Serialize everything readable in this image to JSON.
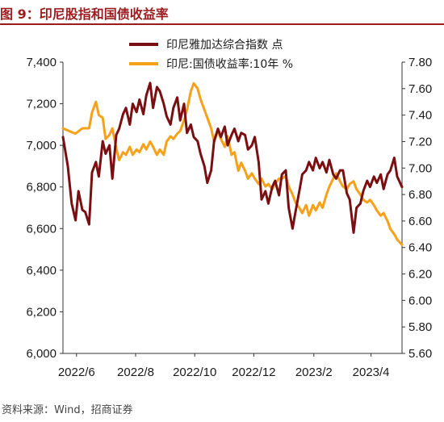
{
  "figure": {
    "title": "图 9：印尼股指和国债收益率",
    "source": "资料来源：Wind，招商证券"
  },
  "colors": {
    "title": "#9b1c1f",
    "jci_series": "#7a0f12",
    "yield_series": "#f7a11a",
    "axis": "#333333"
  },
  "chart_data": {
    "type": "line",
    "title": "",
    "xlabel": "",
    "x_range": [
      "2022-05-18",
      "2023-05-03"
    ],
    "x_ticks": [
      {
        "date": "2022-06-01",
        "label": "2022/6"
      },
      {
        "date": "2022-08-01",
        "label": "2022/8"
      },
      {
        "date": "2022-10-01",
        "label": "2022/10"
      },
      {
        "date": "2022-12-01",
        "label": "2022/12"
      },
      {
        "date": "2023-02-01",
        "label": "2023/2"
      },
      {
        "date": "2023-04-01",
        "label": "2023/4"
      }
    ],
    "y_left": {
      "min": 6000,
      "max": 7400,
      "ticks": [
        "6,000",
        "6,200",
        "6,400",
        "6,600",
        "6,800",
        "7,000",
        "7,200",
        "7,400"
      ]
    },
    "y_right": {
      "min": 5.6,
      "max": 7.8,
      "ticks": [
        "5.60",
        "5.80",
        "6.00",
        "6.20",
        "6.40",
        "6.60",
        "6.80",
        "7.00",
        "7.20",
        "7.40",
        "7.60",
        "7.80"
      ]
    },
    "legend_position": "top-center",
    "grid": false,
    "series": [
      {
        "name": "印尼雅加达综合指数 点",
        "axis": "left",
        "points": [
          [
            "2022-05-18",
            7040
          ],
          [
            "2022-05-23",
            6900
          ],
          [
            "2022-05-27",
            6720
          ],
          [
            "2022-05-31",
            6640
          ],
          [
            "2022-06-03",
            6780
          ],
          [
            "2022-06-07",
            6690
          ],
          [
            "2022-06-10",
            6680
          ],
          [
            "2022-06-14",
            6620
          ],
          [
            "2022-06-17",
            6870
          ],
          [
            "2022-06-21",
            6920
          ],
          [
            "2022-06-24",
            6850
          ],
          [
            "2022-06-28",
            7020
          ],
          [
            "2022-07-01",
            6960
          ],
          [
            "2022-07-05",
            7000
          ],
          [
            "2022-07-08",
            6840
          ],
          [
            "2022-07-12",
            7050
          ],
          [
            "2022-07-15",
            7080
          ],
          [
            "2022-07-19",
            7150
          ],
          [
            "2022-07-22",
            7180
          ],
          [
            "2022-07-26",
            7100
          ],
          [
            "2022-07-29",
            7200
          ],
          [
            "2022-08-02",
            7160
          ],
          [
            "2022-08-05",
            7220
          ],
          [
            "2022-08-09",
            7150
          ],
          [
            "2022-08-12",
            7240
          ],
          [
            "2022-08-16",
            7300
          ],
          [
            "2022-08-19",
            7180
          ],
          [
            "2022-08-23",
            7280
          ],
          [
            "2022-08-26",
            7260
          ],
          [
            "2022-08-30",
            7200
          ],
          [
            "2022-09-02",
            7140
          ],
          [
            "2022-09-06",
            7100
          ],
          [
            "2022-09-09",
            7180
          ],
          [
            "2022-09-13",
            7230
          ],
          [
            "2022-09-16",
            7120
          ],
          [
            "2022-09-20",
            7200
          ],
          [
            "2022-09-23",
            7060
          ],
          [
            "2022-09-27",
            7100
          ],
          [
            "2022-09-30",
            7040
          ],
          [
            "2022-10-04",
            7020
          ],
          [
            "2022-10-07",
            6960
          ],
          [
            "2022-10-11",
            6900
          ],
          [
            "2022-10-14",
            6820
          ],
          [
            "2022-10-18",
            6880
          ],
          [
            "2022-10-21",
            7020
          ],
          [
            "2022-10-25",
            7080
          ],
          [
            "2022-10-28",
            7040
          ],
          [
            "2022-11-01",
            7090
          ],
          [
            "2022-11-04",
            7000
          ],
          [
            "2022-11-08",
            7050
          ],
          [
            "2022-11-11",
            7080
          ],
          [
            "2022-11-15",
            7020
          ],
          [
            "2022-11-18",
            7060
          ],
          [
            "2022-11-22",
            7050
          ],
          [
            "2022-11-25",
            6980
          ],
          [
            "2022-11-29",
            7000
          ],
          [
            "2022-12-02",
            7040
          ],
          [
            "2022-12-06",
            6920
          ],
          [
            "2022-12-09",
            6740
          ],
          [
            "2022-12-13",
            6780
          ],
          [
            "2022-12-16",
            6720
          ],
          [
            "2022-12-20",
            6800
          ],
          [
            "2022-12-23",
            6830
          ],
          [
            "2022-12-27",
            6760
          ],
          [
            "2022-12-30",
            6860
          ],
          [
            "2023-01-03",
            6880
          ],
          [
            "2023-01-06",
            6700
          ],
          [
            "2023-01-10",
            6600
          ],
          [
            "2023-01-13",
            6680
          ],
          [
            "2023-01-17",
            6780
          ],
          [
            "2023-01-20",
            6860
          ],
          [
            "2023-01-24",
            6880
          ],
          [
            "2023-01-27",
            6920
          ],
          [
            "2023-01-31",
            6880
          ],
          [
            "2023-02-03",
            6940
          ],
          [
            "2023-02-07",
            6890
          ],
          [
            "2023-02-10",
            6920
          ],
          [
            "2023-02-14",
            6870
          ],
          [
            "2023-02-17",
            6930
          ],
          [
            "2023-02-21",
            6860
          ],
          [
            "2023-02-24",
            6840
          ],
          [
            "2023-02-28",
            6880
          ],
          [
            "2023-03-03",
            6880
          ],
          [
            "2023-03-07",
            6770
          ],
          [
            "2023-03-10",
            6740
          ],
          [
            "2023-03-14",
            6580
          ],
          [
            "2023-03-17",
            6700
          ],
          [
            "2023-03-21",
            6720
          ],
          [
            "2023-03-24",
            6780
          ],
          [
            "2023-03-28",
            6830
          ],
          [
            "2023-03-31",
            6800
          ],
          [
            "2023-04-04",
            6850
          ],
          [
            "2023-04-07",
            6820
          ],
          [
            "2023-04-11",
            6860
          ],
          [
            "2023-04-14",
            6790
          ],
          [
            "2023-04-18",
            6860
          ],
          [
            "2023-04-21",
            6880
          ],
          [
            "2023-04-25",
            6940
          ],
          [
            "2023-04-28",
            6850
          ],
          [
            "2023-05-03",
            6800
          ]
        ]
      },
      {
        "name": "印尼:国债收益率:10年 %",
        "axis": "right",
        "points": [
          [
            "2022-05-18",
            7.3
          ],
          [
            "2022-05-24",
            7.28
          ],
          [
            "2022-05-31",
            7.26
          ],
          [
            "2022-06-07",
            7.3
          ],
          [
            "2022-06-14",
            7.3
          ],
          [
            "2022-06-17",
            7.42
          ],
          [
            "2022-06-21",
            7.5
          ],
          [
            "2022-06-24",
            7.4
          ],
          [
            "2022-06-28",
            7.38
          ],
          [
            "2022-07-01",
            7.22
          ],
          [
            "2022-07-05",
            7.25
          ],
          [
            "2022-07-08",
            7.3
          ],
          [
            "2022-07-12",
            7.15
          ],
          [
            "2022-07-15",
            7.06
          ],
          [
            "2022-07-19",
            7.12
          ],
          [
            "2022-07-22",
            7.1
          ],
          [
            "2022-07-26",
            7.16
          ],
          [
            "2022-07-29",
            7.1
          ],
          [
            "2022-08-02",
            7.14
          ],
          [
            "2022-08-05",
            7.12
          ],
          [
            "2022-08-09",
            7.18
          ],
          [
            "2022-08-12",
            7.14
          ],
          [
            "2022-08-16",
            7.2
          ],
          [
            "2022-08-19",
            7.16
          ],
          [
            "2022-08-23",
            7.1
          ],
          [
            "2022-08-26",
            7.14
          ],
          [
            "2022-08-30",
            7.1
          ],
          [
            "2022-09-02",
            7.2
          ],
          [
            "2022-09-06",
            7.24
          ],
          [
            "2022-09-09",
            7.22
          ],
          [
            "2022-09-13",
            7.26
          ],
          [
            "2022-09-16",
            7.28
          ],
          [
            "2022-09-20",
            7.36
          ],
          [
            "2022-09-23",
            7.44
          ],
          [
            "2022-09-27",
            7.58
          ],
          [
            "2022-09-30",
            7.64
          ],
          [
            "2022-10-04",
            7.6
          ],
          [
            "2022-10-07",
            7.52
          ],
          [
            "2022-10-11",
            7.44
          ],
          [
            "2022-10-14",
            7.38
          ],
          [
            "2022-10-18",
            7.3
          ],
          [
            "2022-10-21",
            7.2
          ],
          [
            "2022-10-25",
            7.28
          ],
          [
            "2022-10-28",
            7.22
          ],
          [
            "2022-11-01",
            7.16
          ],
          [
            "2022-11-04",
            7.24
          ],
          [
            "2022-11-08",
            7.1
          ],
          [
            "2022-11-11",
            7.12
          ],
          [
            "2022-11-15",
            6.98
          ],
          [
            "2022-11-18",
            7.04
          ],
          [
            "2022-11-22",
            6.98
          ],
          [
            "2022-11-25",
            6.92
          ],
          [
            "2022-11-29",
            6.96
          ],
          [
            "2022-12-02",
            6.92
          ],
          [
            "2022-12-06",
            6.88
          ],
          [
            "2022-12-09",
            6.92
          ],
          [
            "2022-12-13",
            6.86
          ],
          [
            "2022-12-16",
            6.88
          ],
          [
            "2022-12-20",
            6.84
          ],
          [
            "2022-12-23",
            6.88
          ],
          [
            "2022-12-27",
            6.92
          ],
          [
            "2022-12-30",
            6.92
          ],
          [
            "2023-01-03",
            6.94
          ],
          [
            "2023-01-06",
            6.86
          ],
          [
            "2023-01-10",
            6.8
          ],
          [
            "2023-01-13",
            6.74
          ],
          [
            "2023-01-17",
            6.7
          ],
          [
            "2023-01-20",
            6.66
          ],
          [
            "2023-01-24",
            6.72
          ],
          [
            "2023-01-27",
            6.64
          ],
          [
            "2023-01-31",
            6.72
          ],
          [
            "2023-02-03",
            6.68
          ],
          [
            "2023-02-07",
            6.74
          ],
          [
            "2023-02-10",
            6.7
          ],
          [
            "2023-02-14",
            6.8
          ],
          [
            "2023-02-17",
            6.86
          ],
          [
            "2023-02-21",
            6.92
          ],
          [
            "2023-02-24",
            6.96
          ],
          [
            "2023-02-28",
            6.9
          ],
          [
            "2023-03-03",
            6.86
          ],
          [
            "2023-03-07",
            6.84
          ],
          [
            "2023-03-10",
            6.88
          ],
          [
            "2023-03-14",
            6.9
          ],
          [
            "2023-03-17",
            6.84
          ],
          [
            "2023-03-21",
            6.8
          ],
          [
            "2023-03-24",
            6.76
          ],
          [
            "2023-03-28",
            6.74
          ],
          [
            "2023-03-31",
            6.76
          ],
          [
            "2023-04-04",
            6.72
          ],
          [
            "2023-04-07",
            6.68
          ],
          [
            "2023-04-11",
            6.64
          ],
          [
            "2023-04-14",
            6.66
          ],
          [
            "2023-04-18",
            6.6
          ],
          [
            "2023-04-21",
            6.54
          ],
          [
            "2023-04-25",
            6.5
          ],
          [
            "2023-04-28",
            6.46
          ],
          [
            "2023-05-03",
            6.42
          ]
        ]
      }
    ]
  }
}
